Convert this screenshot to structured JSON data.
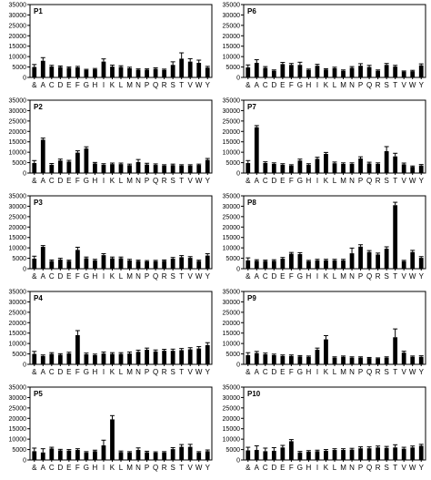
{
  "chart_data": [
    {
      "type": "bar",
      "title": "P1",
      "categories": [
        "&",
        "A",
        "C",
        "D",
        "E",
        "F",
        "G",
        "H",
        "I",
        "K",
        "L",
        "M",
        "N",
        "P",
        "Q",
        "R",
        "S",
        "T",
        "V",
        "W",
        "Y"
      ],
      "yticks": [
        "0",
        "5000",
        "10000",
        "15000",
        "20000",
        "25000",
        "30000",
        "35000"
      ],
      "ylim": [
        0,
        35000
      ],
      "values": [
        5000,
        8000,
        5200,
        5000,
        4600,
        4800,
        3600,
        3900,
        7600,
        5200,
        5000,
        4400,
        3700,
        3700,
        4100,
        3600,
        6000,
        9000,
        7600,
        7000,
        4700
      ],
      "errors": [
        1200,
        1500,
        600,
        500,
        400,
        500,
        300,
        400,
        1300,
        700,
        600,
        500,
        400,
        400,
        500,
        400,
        1500,
        2800,
        1400,
        1300,
        600
      ]
    },
    {
      "type": "bar",
      "title": "P2",
      "categories": [
        "&",
        "A",
        "C",
        "D",
        "E",
        "F",
        "G",
        "H",
        "I",
        "K",
        "L",
        "M",
        "N",
        "P",
        "Q",
        "R",
        "S",
        "T",
        "V",
        "W",
        "Y"
      ],
      "yticks": [
        "0",
        "5000",
        "10000",
        "15000",
        "20000",
        "25000",
        "30000",
        "35000"
      ],
      "ylim": [
        0,
        35000
      ],
      "values": [
        4800,
        16000,
        4000,
        6000,
        5500,
        9800,
        11800,
        4600,
        4000,
        4300,
        4300,
        3800,
        5300,
        4100,
        3900,
        3600,
        3800,
        3600,
        3600,
        3900,
        6300
      ],
      "errors": [
        1200,
        800,
        600,
        700,
        600,
        900,
        800,
        500,
        500,
        500,
        500,
        500,
        1200,
        600,
        500,
        400,
        500,
        400,
        400,
        400,
        700
      ]
    },
    {
      "type": "bar",
      "title": "P3",
      "categories": [
        "&",
        "A",
        "C",
        "D",
        "E",
        "F",
        "G",
        "H",
        "I",
        "K",
        "L",
        "M",
        "N",
        "P",
        "Q",
        "R",
        "S",
        "T",
        "V",
        "W",
        "Y"
      ],
      "yticks": [
        "0",
        "5000",
        "10000",
        "15000",
        "20000",
        "25000",
        "30000",
        "35000"
      ],
      "ylim": [
        0,
        35000
      ],
      "values": [
        4800,
        10500,
        3700,
        4400,
        3700,
        9000,
        5000,
        4000,
        6500,
        5000,
        5000,
        4000,
        3700,
        3500,
        3600,
        3800,
        4800,
        5500,
        5200,
        3700,
        6300
      ],
      "errors": [
        1200,
        600,
        500,
        600,
        400,
        1300,
        600,
        500,
        700,
        600,
        600,
        500,
        400,
        400,
        400,
        400,
        600,
        800,
        600,
        400,
        900
      ]
    },
    {
      "type": "bar",
      "title": "P4",
      "categories": [
        "&",
        "A",
        "C",
        "D",
        "E",
        "F",
        "G",
        "H",
        "I",
        "K",
        "L",
        "M",
        "N",
        "P",
        "Q",
        "R",
        "S",
        "T",
        "V",
        "W",
        "Y"
      ],
      "yticks": [
        "0",
        "5000",
        "10000",
        "15000",
        "20000",
        "25000",
        "30000",
        "35000"
      ],
      "ylim": [
        0,
        35000
      ],
      "values": [
        5000,
        4000,
        5000,
        4600,
        5200,
        14000,
        4800,
        4400,
        5200,
        5000,
        5000,
        5200,
        6000,
        7000,
        6200,
        6500,
        6500,
        6800,
        7200,
        7600,
        9200
      ],
      "errors": [
        1200,
        500,
        600,
        500,
        600,
        2200,
        600,
        500,
        700,
        600,
        600,
        700,
        800,
        800,
        700,
        700,
        800,
        800,
        800,
        900,
        1200
      ]
    },
    {
      "type": "bar",
      "title": "P5",
      "categories": [
        "&",
        "A",
        "C",
        "D",
        "E",
        "F",
        "G",
        "H",
        "I",
        "K",
        "L",
        "M",
        "N",
        "P",
        "Q",
        "R",
        "S",
        "T",
        "V",
        "W",
        "Y"
      ],
      "yticks": [
        "0",
        "5000",
        "10000",
        "15000",
        "20000",
        "25000",
        "30000",
        "35000"
      ],
      "ylim": [
        0,
        35000
      ],
      "values": [
        4200,
        3600,
        5500,
        4600,
        4500,
        4800,
        3600,
        4200,
        7000,
        19500,
        3800,
        3600,
        4800,
        3700,
        3500,
        3600,
        5200,
        6300,
        6300,
        3600,
        4200
      ],
      "errors": [
        1500,
        1800,
        600,
        500,
        500,
        600,
        400,
        500,
        2500,
        1800,
        500,
        400,
        1000,
        500,
        400,
        400,
        700,
        1100,
        1200,
        400,
        600
      ]
    },
    {
      "type": "bar",
      "title": "P6",
      "categories": [
        "&",
        "A",
        "C",
        "D",
        "E",
        "F",
        "G",
        "H",
        "I",
        "K",
        "L",
        "M",
        "N",
        "P",
        "Q",
        "R",
        "S",
        "T",
        "V",
        "W",
        "Y"
      ],
      "yticks": [
        "0",
        "5000",
        "10000",
        "15000",
        "20000",
        "25000",
        "30000",
        "35000"
      ],
      "ylim": [
        0,
        35000
      ],
      "values": [
        4800,
        7000,
        4600,
        3200,
        6400,
        6000,
        6000,
        3600,
        5600,
        3800,
        4400,
        3200,
        4600,
        5600,
        5000,
        3200,
        6000,
        5200,
        2800,
        3000,
        5800
      ],
      "errors": [
        1200,
        1500,
        600,
        400,
        800,
        700,
        1300,
        400,
        700,
        400,
        500,
        400,
        600,
        1000,
        800,
        400,
        700,
        600,
        300,
        400,
        700
      ]
    },
    {
      "type": "bar",
      "title": "P7",
      "categories": [
        "&",
        "A",
        "C",
        "D",
        "E",
        "F",
        "G",
        "H",
        "I",
        "K",
        "L",
        "M",
        "N",
        "P",
        "Q",
        "R",
        "S",
        "T",
        "V",
        "W",
        "Y"
      ],
      "yticks": [
        "0",
        "5000",
        "10000",
        "15000",
        "20000",
        "25000",
        "30000",
        "35000"
      ],
      "ylim": [
        0,
        35000
      ],
      "values": [
        4800,
        22000,
        4800,
        4400,
        4000,
        3600,
        6000,
        4000,
        6800,
        9200,
        4700,
        4400,
        4400,
        7000,
        4600,
        4400,
        10500,
        8000,
        4200,
        3000,
        3600
      ],
      "errors": [
        1200,
        800,
        600,
        500,
        500,
        400,
        700,
        500,
        800,
        700,
        600,
        500,
        500,
        800,
        600,
        500,
        2200,
        1500,
        600,
        400,
        500
      ]
    },
    {
      "type": "bar",
      "title": "P8",
      "categories": [
        "&",
        "A",
        "C",
        "D",
        "E",
        "F",
        "G",
        "H",
        "I",
        "K",
        "L",
        "M",
        "N",
        "P",
        "Q",
        "R",
        "S",
        "T",
        "V",
        "W",
        "Y"
      ],
      "yticks": [
        "0",
        "5000",
        "10000",
        "15000",
        "20000",
        "25000",
        "30000",
        "35000"
      ],
      "ylim": [
        0,
        35000
      ],
      "values": [
        4000,
        3800,
        3700,
        3800,
        4800,
        7200,
        7000,
        3600,
        4000,
        4000,
        4000,
        4000,
        7400,
        10600,
        8000,
        6800,
        9600,
        30500,
        3600,
        8000,
        5200
      ],
      "errors": [
        1200,
        500,
        400,
        500,
        600,
        600,
        700,
        400,
        500,
        500,
        500,
        500,
        2500,
        900,
        700,
        700,
        900,
        1400,
        400,
        800,
        600
      ]
    },
    {
      "type": "bar",
      "title": "P9",
      "categories": [
        "&",
        "A",
        "C",
        "D",
        "E",
        "F",
        "G",
        "H",
        "I",
        "K",
        "L",
        "M",
        "N",
        "P",
        "Q",
        "R",
        "S",
        "T",
        "V",
        "W",
        "Y"
      ],
      "yticks": [
        "0",
        "5000",
        "10000",
        "15000",
        "20000",
        "25000",
        "30000",
        "35000"
      ],
      "ylim": [
        0,
        35000
      ],
      "values": [
        4400,
        5400,
        4800,
        4400,
        4000,
        4000,
        3800,
        3600,
        7000,
        12000,
        3200,
        3600,
        3200,
        3200,
        3000,
        2800,
        3200,
        13000,
        5600,
        3600,
        3600
      ],
      "errors": [
        1200,
        800,
        600,
        500,
        500,
        500,
        400,
        400,
        800,
        1800,
        400,
        400,
        400,
        400,
        300,
        300,
        400,
        4000,
        700,
        400,
        500
      ]
    },
    {
      "type": "bar",
      "title": "P10",
      "categories": [
        "&",
        "A",
        "C",
        "D",
        "E",
        "F",
        "G",
        "H",
        "I",
        "K",
        "L",
        "M",
        "N",
        "P",
        "Q",
        "R",
        "S",
        "T",
        "V",
        "W",
        "Y"
      ],
      "yticks": [
        "0",
        "5000",
        "10000",
        "15000",
        "20000",
        "25000",
        "30000",
        "35000"
      ],
      "ylim": [
        0,
        35000
      ],
      "values": [
        4600,
        4800,
        4200,
        4400,
        6000,
        9000,
        3600,
        4000,
        4200,
        4400,
        4800,
        4800,
        5000,
        5600,
        5600,
        6000,
        5800,
        6000,
        5400,
        6000,
        6800
      ],
      "errors": [
        1500,
        2000,
        1500,
        1500,
        1000,
        800,
        500,
        500,
        500,
        600,
        600,
        600,
        600,
        700,
        700,
        700,
        700,
        1300,
        700,
        700,
        700
      ]
    }
  ]
}
